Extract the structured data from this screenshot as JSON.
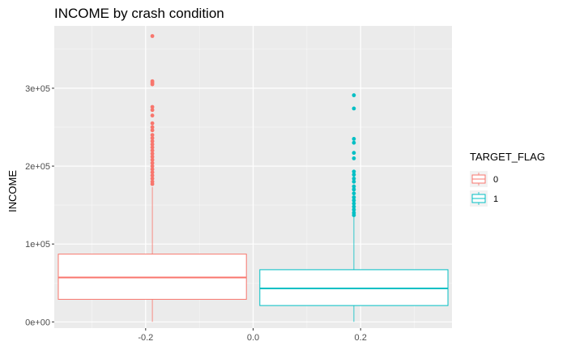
{
  "chart_data": {
    "type": "boxplot",
    "title": "INCOME by crash condition",
    "xlabel": "",
    "ylabel": "INCOME",
    "xlim": [
      -0.37,
      0.37
    ],
    "ylim": [
      -8000,
      380000
    ],
    "x_ticks": [
      {
        "value": -0.2,
        "label": "-0.2"
      },
      {
        "value": 0.0,
        "label": "0.0"
      },
      {
        "value": 0.2,
        "label": "0.2"
      }
    ],
    "x_minor_ticks": [
      -0.3,
      -0.1,
      0.1,
      0.3
    ],
    "y_ticks": [
      {
        "value": 0,
        "label": "0e+00"
      },
      {
        "value": 100000,
        "label": "1e+05"
      },
      {
        "value": 200000,
        "label": "2e+05"
      },
      {
        "value": 300000,
        "label": "3e+05"
      }
    ],
    "y_minor_ticks": [
      50000,
      150000,
      250000,
      350000
    ],
    "grid": true,
    "legend": {
      "title": "TARGET_FLAG",
      "position": "right",
      "entries": [
        {
          "label": "0",
          "color": "#F8766D"
        },
        {
          "label": "1",
          "color": "#00BFC4"
        }
      ]
    },
    "series": [
      {
        "name": "0",
        "color": "#F8766D",
        "x_range": [
          -0.3625,
          -0.0125
        ],
        "min": 0,
        "q1": 29000,
        "median": 57000,
        "q3": 87000,
        "whisker_high": 173000,
        "outliers": [
          367000,
          309000,
          307000,
          305000,
          276000,
          272000,
          265000,
          255000,
          250000,
          246000,
          240000,
          236000,
          232000,
          228000,
          224000,
          220000,
          216000,
          212000,
          208000,
          204000,
          200000,
          196000,
          192000,
          188000,
          184000,
          180000,
          177000
        ]
      },
      {
        "name": "1",
        "color": "#00BFC4",
        "x_range": [
          0.0125,
          0.3625
        ],
        "min": 0,
        "q1": 21000,
        "median": 43000,
        "q3": 67000,
        "whisker_high": 135000,
        "outliers": [
          291000,
          274000,
          235000,
          230000,
          217000,
          210000,
          193000,
          189000,
          184000,
          180000,
          174000,
          170000,
          165000,
          160000,
          156000,
          152000,
          148000,
          144000,
          140000,
          137000
        ]
      }
    ],
    "colors": {
      "panel_background": "#EBEBEB",
      "grid_major": "#FFFFFF",
      "tick_label": "#4D4D4D",
      "tick": "#333333"
    }
  }
}
